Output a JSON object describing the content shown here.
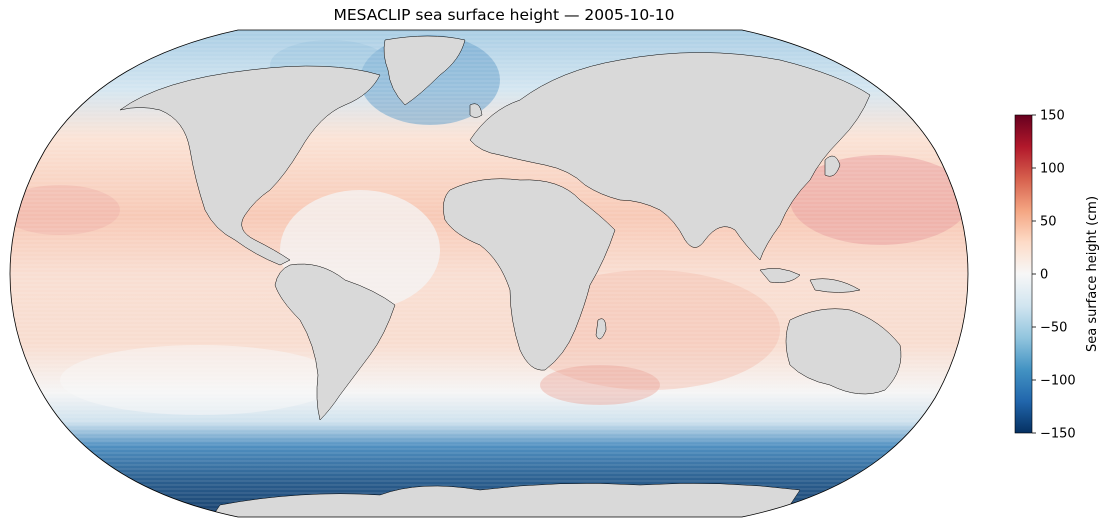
{
  "title": "MESACLIP sea surface height — 2005-10-10",
  "colorbar": {
    "label": "Sea surface height (cm)",
    "min": -150,
    "max": 150,
    "ticks": [
      "150",
      "100",
      "50",
      "0",
      "−50",
      "−100",
      "−150"
    ],
    "colormap": "RdBu_r",
    "colors": [
      "#053061",
      "#2166ac",
      "#4393c3",
      "#92c5de",
      "#d1e5f0",
      "#f7f7f7",
      "#fddbc7",
      "#f4a582",
      "#d6604d",
      "#b2182b",
      "#67001f"
    ]
  },
  "map": {
    "projection": "Robinson",
    "land_color": "#d9d9d9",
    "coastline_color": "#000000"
  }
}
